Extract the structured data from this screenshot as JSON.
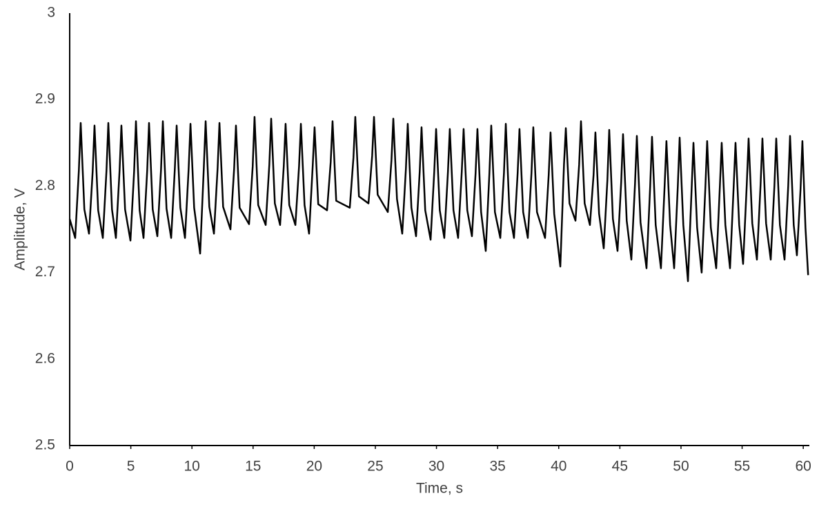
{
  "chart_data": {
    "type": "line",
    "x_label": "Time, s",
    "y_label": "Amplitude, V",
    "color": "#000000",
    "grid": false,
    "xlim": [
      0,
      60.5
    ],
    "xticks": [
      0,
      5,
      10,
      15,
      20,
      25,
      30,
      35,
      40,
      45,
      50,
      55,
      60
    ],
    "ylim": [
      2.5,
      3
    ],
    "yticks": [
      2.5,
      2.6,
      2.7,
      2.8,
      2.9,
      3
    ],
    "x": [
      0,
      0.45,
      0.75,
      0.9,
      1.2,
      1.58,
      1.88,
      2.03,
      2.33,
      2.71,
      3.01,
      3.16,
      3.46,
      3.78,
      4.08,
      4.23,
      4.53,
      4.97,
      5.27,
      5.42,
      5.72,
      6.04,
      6.34,
      6.49,
      6.79,
      7.17,
      7.47,
      7.62,
      7.92,
      8.3,
      8.6,
      8.75,
      9.05,
      9.43,
      9.73,
      9.88,
      10.18,
      10.67,
      10.97,
      11.12,
      11.42,
      11.8,
      12.1,
      12.25,
      12.55,
      13.15,
      13.45,
      13.6,
      13.9,
      14.67,
      14.97,
      15.12,
      15.42,
      16.03,
      16.33,
      16.48,
      16.78,
      17.21,
      17.51,
      17.66,
      17.96,
      18.46,
      18.76,
      18.91,
      19.21,
      19.58,
      19.88,
      20.03,
      20.33,
      21.05,
      21.35,
      21.5,
      21.8,
      22.91,
      23.21,
      23.36,
      23.66,
      24.44,
      24.74,
      24.89,
      25.19,
      26.02,
      26.32,
      26.47,
      26.77,
      27.2,
      27.5,
      27.65,
      27.95,
      28.33,
      28.63,
      28.78,
      29.08,
      29.52,
      29.82,
      29.97,
      30.27,
      30.64,
      30.94,
      31.09,
      31.39,
      31.77,
      32.07,
      32.22,
      32.52,
      32.9,
      33.2,
      33.35,
      33.65,
      34.03,
      34.33,
      34.48,
      34.78,
      35.22,
      35.52,
      35.67,
      35.97,
      36.34,
      36.64,
      36.79,
      37.09,
      37.47,
      37.77,
      37.92,
      38.22,
      38.88,
      39.18,
      39.33,
      39.63,
      40.13,
      40.43,
      40.58,
      40.88,
      41.37,
      41.67,
      41.82,
      42.12,
      42.55,
      42.85,
      43.0,
      43.3,
      43.68,
      43.98,
      44.13,
      44.43,
      44.81,
      45.11,
      45.26,
      45.56,
      45.94,
      46.24,
      46.39,
      46.69,
      47.18,
      47.48,
      47.63,
      47.93,
      48.36,
      48.66,
      48.81,
      49.11,
      49.44,
      49.74,
      49.89,
      50.19,
      50.57,
      50.87,
      51.02,
      51.32,
      51.69,
      51.99,
      52.14,
      52.44,
      52.88,
      53.18,
      53.33,
      53.63,
      54.01,
      54.31,
      54.46,
      54.76,
      55.08,
      55.38,
      55.53,
      55.83,
      56.21,
      56.51,
      56.66,
      56.96,
      57.34,
      57.64,
      57.79,
      58.09,
      58.47,
      58.77,
      58.92,
      59.22,
      59.48,
      59.78,
      59.93,
      60.18,
      60.4
    ],
    "values": [
      2.762,
      2.74,
      2.818,
      2.873,
      2.773,
      2.745,
      2.817,
      2.87,
      2.772,
      2.74,
      2.818,
      2.873,
      2.773,
      2.74,
      2.818,
      2.87,
      2.773,
      2.737,
      2.817,
      2.875,
      2.772,
      2.74,
      2.818,
      2.873,
      2.773,
      2.742,
      2.819,
      2.875,
      2.774,
      2.74,
      2.82,
      2.87,
      2.775,
      2.74,
      2.82,
      2.872,
      2.775,
      2.722,
      2.821,
      2.875,
      2.776,
      2.745,
      2.821,
      2.873,
      2.776,
      2.75,
      2.82,
      2.87,
      2.775,
      2.756,
      2.823,
      2.88,
      2.778,
      2.755,
      2.825,
      2.878,
      2.78,
      2.755,
      2.823,
      2.872,
      2.778,
      2.755,
      2.823,
      2.872,
      2.778,
      2.745,
      2.824,
      2.868,
      2.779,
      2.772,
      2.828,
      2.875,
      2.783,
      2.775,
      2.833,
      2.88,
      2.788,
      2.78,
      2.835,
      2.88,
      2.79,
      2.77,
      2.83,
      2.878,
      2.785,
      2.745,
      2.82,
      2.872,
      2.775,
      2.742,
      2.817,
      2.868,
      2.772,
      2.738,
      2.817,
      2.866,
      2.772,
      2.74,
      2.817,
      2.866,
      2.772,
      2.74,
      2.817,
      2.866,
      2.772,
      2.742,
      2.815,
      2.866,
      2.77,
      2.725,
      2.815,
      2.87,
      2.77,
      2.74,
      2.815,
      2.872,
      2.77,
      2.74,
      2.815,
      2.866,
      2.77,
      2.74,
      2.815,
      2.868,
      2.77,
      2.74,
      2.813,
      2.862,
      2.768,
      2.707,
      2.825,
      2.867,
      2.78,
      2.76,
      2.825,
      2.875,
      2.78,
      2.755,
      2.813,
      2.862,
      2.768,
      2.728,
      2.807,
      2.865,
      2.762,
      2.725,
      2.805,
      2.86,
      2.76,
      2.715,
      2.803,
      2.858,
      2.758,
      2.705,
      2.8,
      2.857,
      2.755,
      2.705,
      2.8,
      2.852,
      2.755,
      2.705,
      2.8,
      2.856,
      2.755,
      2.69,
      2.797,
      2.85,
      2.752,
      2.7,
      2.797,
      2.852,
      2.752,
      2.705,
      2.8,
      2.85,
      2.755,
      2.705,
      2.8,
      2.85,
      2.755,
      2.71,
      2.802,
      2.855,
      2.757,
      2.715,
      2.802,
      2.855,
      2.757,
      2.715,
      2.8,
      2.855,
      2.755,
      2.715,
      2.8,
      2.858,
      2.755,
      2.72,
      2.797,
      2.852,
      2.752,
      2.697
    ]
  }
}
